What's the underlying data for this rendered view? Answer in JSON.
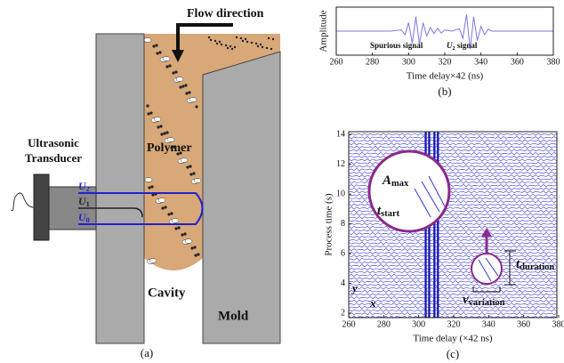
{
  "diagram": {
    "panel_label": "(a)",
    "flow_label": "Flow direction",
    "material_label": "Polymer",
    "transducer_label": [
      "Ultrasonic",
      "Transducer"
    ],
    "signals": [
      {
        "symbol": "U",
        "subscript": "2"
      },
      {
        "symbol": "U",
        "subscript": "1"
      },
      {
        "symbol": "U",
        "subscript": "0"
      }
    ],
    "cavity_label": "Cavity",
    "mold_label": "Mold"
  },
  "chart_data": [
    {
      "type": "line",
      "panel_label": "(b)",
      "y_label": "Amplitude",
      "x_label": "Time delay×42 (ns)",
      "x": [
        260,
        290,
        296,
        298,
        300,
        302,
        304,
        306,
        308,
        310,
        312,
        314,
        316,
        318,
        320,
        324,
        328,
        330,
        332,
        334,
        336,
        338,
        340,
        342,
        344,
        346,
        350,
        380
      ],
      "values": [
        0,
        0,
        0.05,
        -0.15,
        0.35,
        -0.5,
        0.6,
        -0.55,
        0.35,
        -0.2,
        0.15,
        -0.1,
        0.12,
        -0.08,
        0.05,
        0,
        0.1,
        -0.3,
        0.7,
        -0.75,
        0.6,
        -0.4,
        0.2,
        -0.15,
        0.08,
        0,
        0,
        0
      ],
      "color": "#7a7ae0",
      "xlim": [
        260,
        380
      ],
      "xticks": [
        260,
        280,
        300,
        320,
        340,
        360,
        380
      ],
      "ylim": [
        -1,
        1
      ],
      "annotations": [
        {
          "text": "Spurious signal"
        },
        {
          "symbol": "U",
          "subscript": "2",
          "text": " signal"
        }
      ]
    },
    {
      "type": "traces",
      "panel_label": "(c)",
      "y_label": "Process time (s)",
      "x_label": "Time delay (×42 ns)",
      "xlim": [
        260,
        379
      ],
      "xticks": [
        260,
        280,
        300,
        320,
        340,
        360,
        380
      ],
      "ylim": [
        1.7,
        14.2
      ],
      "yticks": [
        2,
        4,
        6,
        8,
        10,
        12,
        14
      ],
      "highlight_x": [
        304,
        306,
        309,
        311
      ],
      "color": "#3535d0",
      "annotations": [
        {
          "symbol": "A",
          "subscript": "max"
        },
        {
          "symbol": "t",
          "subscript": "start"
        },
        {
          "symbol": "t",
          "subscript": "duration"
        },
        {
          "symbol": "v",
          "subscript": "variation"
        },
        {
          "symbol": "y"
        },
        {
          "symbol": "x"
        }
      ]
    }
  ]
}
